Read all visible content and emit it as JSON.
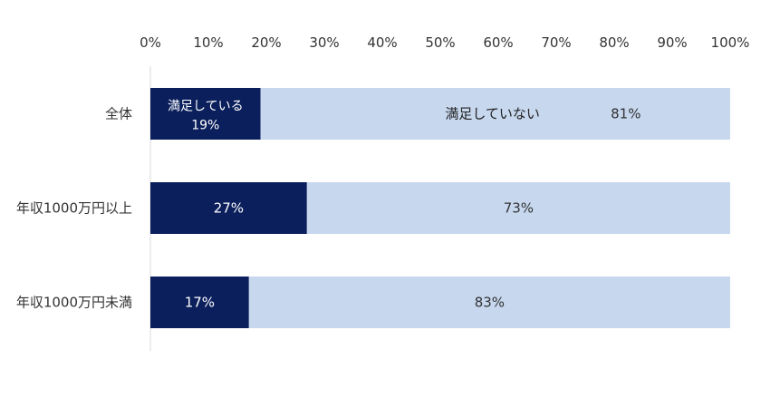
{
  "chart_data": {
    "type": "bar",
    "orientation": "horizontal",
    "stacked": "100%",
    "x_ticks": [
      "0%",
      "10%",
      "20%",
      "30%",
      "40%",
      "50%",
      "60%",
      "70%",
      "80%",
      "90%",
      "100%"
    ],
    "xlim": [
      0,
      100
    ],
    "categories": [
      "全体",
      "年収1000万円以上",
      "年収1000万円未満"
    ],
    "series": [
      {
        "name": "満足している",
        "values": [
          19,
          27,
          17
        ],
        "labels": [
          "19%",
          "27%",
          "17%"
        ],
        "color": "#0b1f5c",
        "label_color": "#ffffff"
      },
      {
        "name": "満足していない",
        "values": [
          81,
          73,
          83
        ],
        "labels": [
          "81%",
          "73%",
          "83%"
        ],
        "color": "#c6d7ee",
        "label_color": "#333333"
      }
    ],
    "grid": false,
    "legend": "none"
  }
}
